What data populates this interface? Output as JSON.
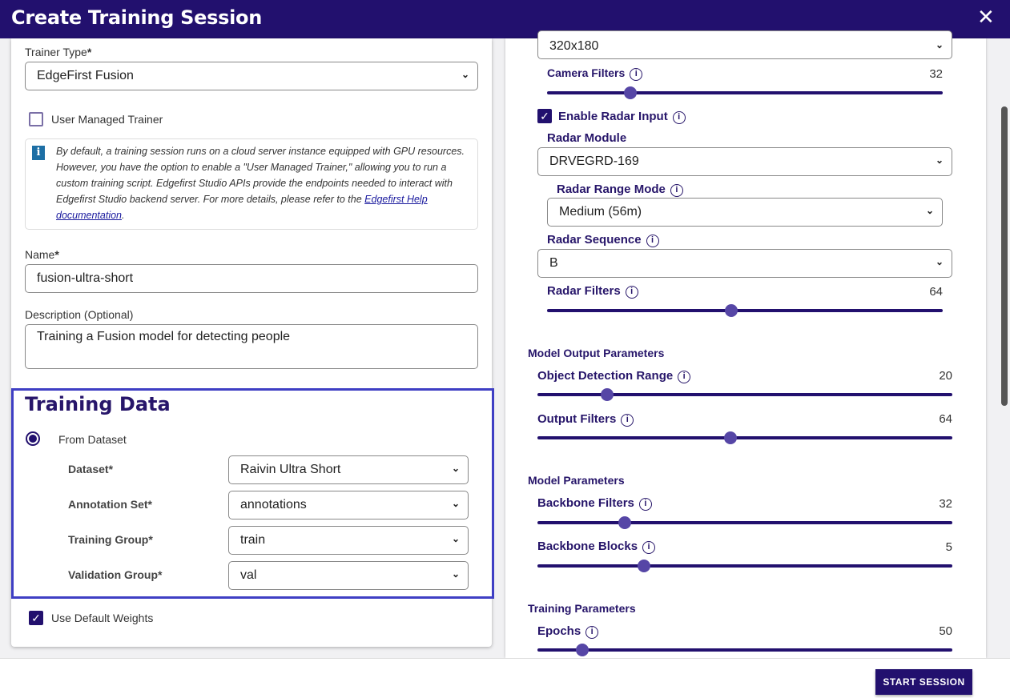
{
  "header": {
    "title": "Create Training Session",
    "close_icon": "close-icon"
  },
  "left": {
    "trainer_type": {
      "label": "Trainer Type",
      "required": "*",
      "value": "EdgeFirst Fusion"
    },
    "user_managed": {
      "label": "User Managed Trainer",
      "checked": false
    },
    "info": {
      "text": "By default, a training session runs on a cloud server instance equipped with GPU resources. However, you have the option to enable a \"User Managed Trainer,\" allowing you to run a custom training script. Edgefirst Studio APIs provide the endpoints needed to interact with Edgefirst Studio backend server. For more details, please refer to the ",
      "link": "Edgefirst Help documentation",
      "end": "."
    },
    "name": {
      "label": "Name",
      "required": "*",
      "value": "fusion-ultra-short"
    },
    "description": {
      "label": "Description (Optional)",
      "value": "Training a Fusion model for detecting people"
    },
    "training_data": {
      "title": "Training Data",
      "from_dataset": "From Dataset",
      "fields": [
        {
          "label": "Dataset*",
          "value": "Raivin Ultra Short"
        },
        {
          "label": "Annotation Set*",
          "value": "annotations"
        },
        {
          "label": "Training Group*",
          "value": "train"
        },
        {
          "label": "Validation Group*",
          "value": "val"
        }
      ]
    },
    "default_weights": {
      "label": "Use Default Weights",
      "checked": true
    }
  },
  "right": {
    "resolution": "320x180",
    "camera_filters": {
      "label": "Camera Filters",
      "value": "32",
      "fraction": 0.21
    },
    "enable_radar": {
      "label": "Enable Radar Input",
      "checked": true
    },
    "radar_module": {
      "label": "Radar Module",
      "value": "DRVEGRD-169"
    },
    "radar_range": {
      "label": "Radar Range Mode",
      "value": "Medium (56m)"
    },
    "radar_sequence": {
      "label": "Radar Sequence",
      "value": "B"
    },
    "radar_filters": {
      "label": "Radar Filters",
      "value": "64",
      "fraction": 0.465
    },
    "model_output": {
      "title": "Model Output Parameters",
      "object_range": {
        "label": "Object Detection Range",
        "value": "20",
        "fraction": 0.168
      },
      "output_filters": {
        "label": "Output Filters",
        "value": "64",
        "fraction": 0.465
      }
    },
    "model_params": {
      "title": "Model Parameters",
      "backbone_filters": {
        "label": "Backbone Filters",
        "value": "32",
        "fraction": 0.21
      },
      "backbone_blocks": {
        "label": "Backbone Blocks",
        "value": "5",
        "fraction": 0.257
      }
    },
    "training_params": {
      "title": "Training Parameters",
      "epochs": {
        "label": "Epochs",
        "value": "50",
        "fraction": 0.108
      }
    }
  },
  "footer": {
    "start_label": "START SESSION"
  },
  "colors": {
    "header": "#22106e",
    "accent": "#5646a6",
    "highlight_border": "#3f3fc4"
  }
}
